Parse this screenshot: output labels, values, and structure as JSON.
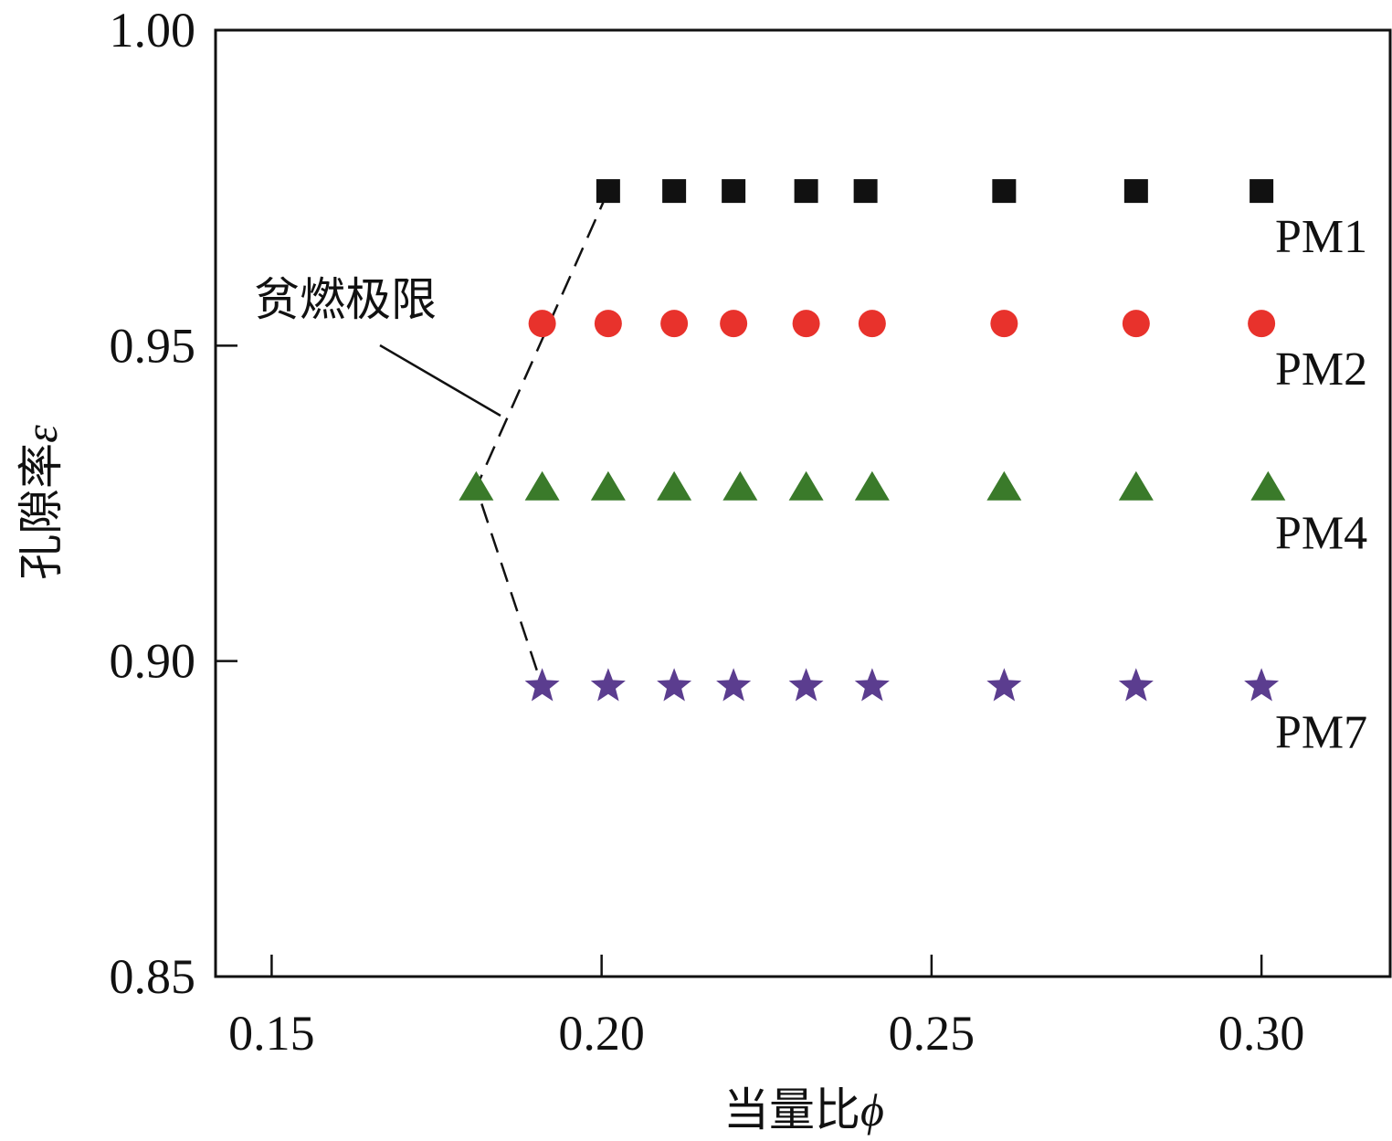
{
  "chart_data": {
    "type": "scatter",
    "xlabel": "当量比",
    "xlabel_symbol": "ϕ",
    "ylabel": "孔隙率",
    "ylabel_symbol": "ε",
    "xlim": [
      0.1415,
      0.3195
    ],
    "ylim": [
      0.85,
      1.0
    ],
    "xticks": [
      "0.15",
      "0.20",
      "0.25",
      "0.30"
    ],
    "yticks": [
      "0.85",
      "0.90",
      "0.95",
      "1.00"
    ],
    "grid": false,
    "legend": "inline labels at right",
    "series": [
      {
        "name": "PM1",
        "marker": "square",
        "color": "#111111",
        "x": [
          0.201,
          0.211,
          0.22,
          0.231,
          0.24,
          0.261,
          0.281,
          0.3
        ],
        "y": [
          0.9745,
          0.9745,
          0.9745,
          0.9745,
          0.9745,
          0.9745,
          0.9745,
          0.9745
        ]
      },
      {
        "name": "PM2",
        "marker": "circle",
        "color": "#e8322c",
        "x": [
          0.191,
          0.201,
          0.211,
          0.22,
          0.231,
          0.241,
          0.261,
          0.281,
          0.3
        ],
        "y": [
          0.9535,
          0.9535,
          0.9535,
          0.9535,
          0.9535,
          0.9535,
          0.9535,
          0.9535,
          0.9535
        ]
      },
      {
        "name": "PM4",
        "marker": "triangle",
        "color": "#3a7a2a",
        "x": [
          0.181,
          0.191,
          0.201,
          0.211,
          0.221,
          0.231,
          0.241,
          0.261,
          0.281,
          0.301
        ],
        "y": [
          0.9275,
          0.9275,
          0.9275,
          0.9275,
          0.9275,
          0.9275,
          0.9275,
          0.9275,
          0.9275,
          0.9275
        ]
      },
      {
        "name": "PM7",
        "marker": "star",
        "color": "#5b3d8f",
        "x": [
          0.191,
          0.201,
          0.211,
          0.22,
          0.231,
          0.241,
          0.261,
          0.281,
          0.3
        ],
        "y": [
          0.896,
          0.896,
          0.896,
          0.896,
          0.896,
          0.896,
          0.896,
          0.896,
          0.896
        ]
      }
    ],
    "lean_limit_curve": {
      "style": "dashed",
      "x": [
        0.201,
        0.181,
        0.191
      ],
      "y": [
        0.9745,
        0.9275,
        0.896
      ]
    },
    "annotations": [
      {
        "text": "贫燃极限"
      }
    ]
  }
}
